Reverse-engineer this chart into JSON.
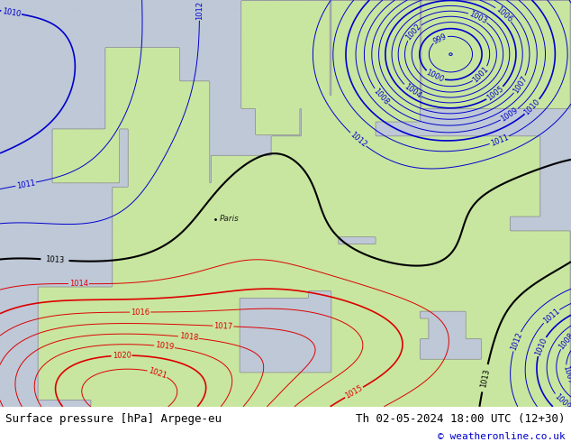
{
  "title_left": "Surface pressure [hPa] Arpege-eu",
  "title_right": "Th 02-05-2024 18:00 UTC (12+30)",
  "credit": "© weatheronline.co.uk",
  "background_land": "#c8e6a0",
  "background_sea": "#c8c8d8",
  "contour_color_blue": "#0000cc",
  "contour_color_black": "#000000",
  "contour_color_red": "#dd0000",
  "label_fontsize": 6,
  "title_fontsize": 9,
  "credit_fontsize": 8,
  "credit_color": "#0000cc",
  "bottom_bar_color": "#d0d0d0",
  "bottom_text_color": "#000000"
}
